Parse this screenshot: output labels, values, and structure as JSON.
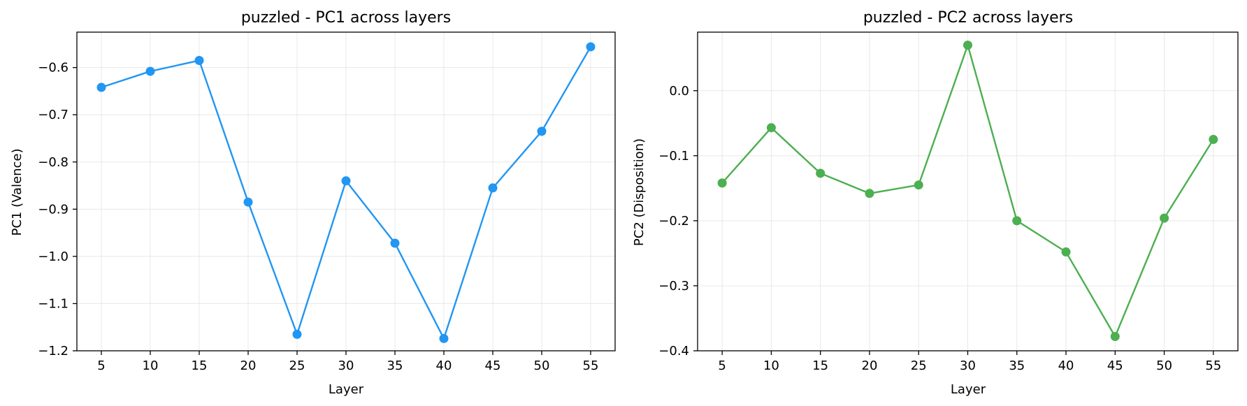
{
  "chart_data": [
    {
      "type": "line",
      "title": "puzzled - PC1 across layers",
      "xlabel": "Layer",
      "ylabel": "PC1 (Valence)",
      "x": [
        5,
        10,
        15,
        20,
        25,
        30,
        35,
        40,
        45,
        50,
        55
      ],
      "xticks": [
        "5",
        "10",
        "15",
        "20",
        "25",
        "30",
        "35",
        "40",
        "45",
        "50",
        "55"
      ],
      "xlim": [
        2.5,
        57.5
      ],
      "ylim": [
        -1.2,
        -0.525
      ],
      "yticks": [
        -1.2,
        -1.1,
        -1.0,
        -0.9,
        -0.8,
        -0.7,
        -0.6
      ],
      "ytick_labels": [
        "−1.2",
        "−1.1",
        "−1.0",
        "−0.9",
        "−0.8",
        "−0.7",
        "−0.6"
      ],
      "grid": true,
      "series": [
        {
          "color": "#2196F3",
          "values": [
            -0.642,
            -0.608,
            -0.585,
            -0.885,
            -1.165,
            -0.84,
            -0.972,
            -1.174,
            -0.855,
            -0.735,
            -0.556
          ]
        }
      ]
    },
    {
      "type": "line",
      "title": "puzzled - PC2 across layers",
      "xlabel": "Layer",
      "ylabel": "PC2 (Disposition)",
      "x": [
        5,
        10,
        15,
        20,
        25,
        30,
        35,
        40,
        45,
        50,
        55
      ],
      "xticks": [
        "5",
        "10",
        "15",
        "20",
        "25",
        "30",
        "35",
        "40",
        "45",
        "50",
        "55"
      ],
      "xlim": [
        2.5,
        57.5
      ],
      "ylim": [
        -0.4,
        0.09
      ],
      "yticks": [
        -0.4,
        -0.3,
        -0.2,
        -0.1,
        0.0
      ],
      "ytick_labels": [
        "−0.4",
        "−0.3",
        "−0.2",
        "−0.1",
        "0.0"
      ],
      "grid": true,
      "series": [
        {
          "color": "#4CAF50",
          "values": [
            -0.142,
            -0.057,
            -0.127,
            -0.158,
            -0.145,
            0.07,
            -0.2,
            -0.248,
            -0.378,
            -0.196,
            -0.075
          ]
        }
      ]
    }
  ]
}
